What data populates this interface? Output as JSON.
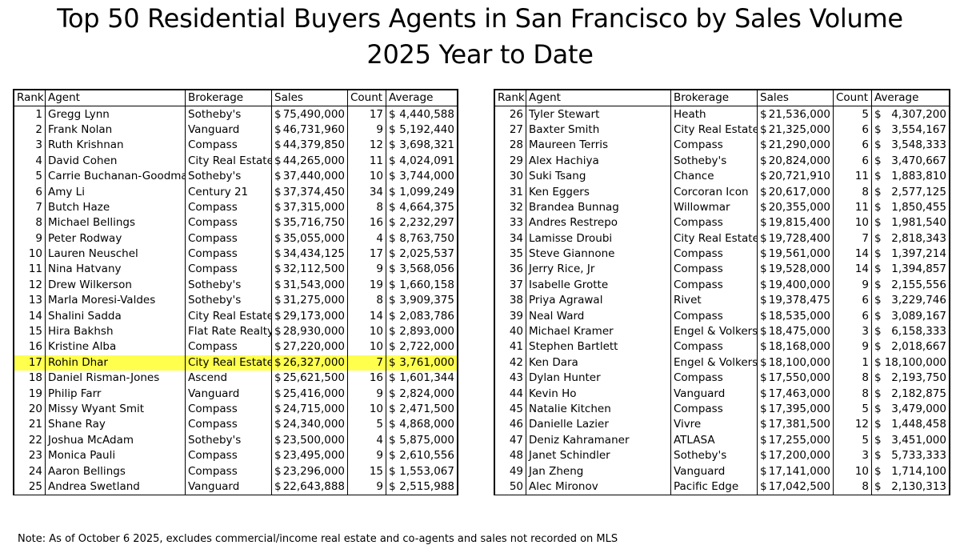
{
  "title": "Top 50 Residential Buyers Agents in San Francisco by Sales Volume",
  "subtitle": "2025 Year to Date",
  "columns": [
    "Rank",
    "Agent",
    "Brokerage",
    "Sales",
    "Count",
    "Average"
  ],
  "currency_symbol": "$",
  "highlight_color": "#ffff4d",
  "left_table": [
    {
      "rank": "1",
      "agent": "Gregg Lynn",
      "brokerage": "Sotheby's",
      "sales": "75,490,000",
      "count": "17",
      "average": "4,440,588"
    },
    {
      "rank": "2",
      "agent": "Frank Nolan",
      "brokerage": "Vanguard",
      "sales": "46,731,960",
      "count": "9",
      "average": "5,192,440"
    },
    {
      "rank": "3",
      "agent": "Ruth Krishnan",
      "brokerage": "Compass",
      "sales": "44,379,850",
      "count": "12",
      "average": "3,698,321"
    },
    {
      "rank": "4",
      "agent": "David Cohen",
      "brokerage": "City Real Estate",
      "sales": "44,265,000",
      "count": "11",
      "average": "4,024,091"
    },
    {
      "rank": "5",
      "agent": "Carrie Buchanan-Goodman",
      "brokerage": "Sotheby's",
      "sales": "37,440,000",
      "count": "10",
      "average": "3,744,000"
    },
    {
      "rank": "6",
      "agent": "Amy Li",
      "brokerage": "Century 21",
      "sales": "37,374,450",
      "count": "34",
      "average": "1,099,249"
    },
    {
      "rank": "7",
      "agent": "Butch Haze",
      "brokerage": "Compass",
      "sales": "37,315,000",
      "count": "8",
      "average": "4,664,375"
    },
    {
      "rank": "8",
      "agent": "Michael Bellings",
      "brokerage": "Compass",
      "sales": "35,716,750",
      "count": "16",
      "average": "2,232,297"
    },
    {
      "rank": "9",
      "agent": "Peter Rodway",
      "brokerage": "Compass",
      "sales": "35,055,000",
      "count": "4",
      "average": "8,763,750"
    },
    {
      "rank": "10",
      "agent": "Lauren Neuschel",
      "brokerage": "Compass",
      "sales": "34,434,125",
      "count": "17",
      "average": "2,025,537"
    },
    {
      "rank": "11",
      "agent": "Nina Hatvany",
      "brokerage": "Compass",
      "sales": "32,112,500",
      "count": "9",
      "average": "3,568,056"
    },
    {
      "rank": "12",
      "agent": "Drew Wilkerson",
      "brokerage": "Sotheby's",
      "sales": "31,543,000",
      "count": "19",
      "average": "1,660,158"
    },
    {
      "rank": "13",
      "agent": "Marla Moresi-Valdes",
      "brokerage": "Sotheby's",
      "sales": "31,275,000",
      "count": "8",
      "average": "3,909,375"
    },
    {
      "rank": "14",
      "agent": "Shalini Sadda",
      "brokerage": "City Real Estate",
      "sales": "29,173,000",
      "count": "14",
      "average": "2,083,786"
    },
    {
      "rank": "15",
      "agent": "Hira Bakhsh",
      "brokerage": "Flat Rate Realty",
      "sales": "28,930,000",
      "count": "10",
      "average": "2,893,000"
    },
    {
      "rank": "16",
      "agent": "Kristine Alba",
      "brokerage": "Compass",
      "sales": "27,220,000",
      "count": "10",
      "average": "2,722,000"
    },
    {
      "rank": "17",
      "agent": "Rohin Dhar",
      "brokerage": "City Real Estate",
      "sales": "26,327,000",
      "count": "7",
      "average": "3,761,000",
      "highlight": true
    },
    {
      "rank": "18",
      "agent": "Daniel Risman-Jones",
      "brokerage": "Ascend",
      "sales": "25,621,500",
      "count": "16",
      "average": "1,601,344"
    },
    {
      "rank": "19",
      "agent": "Philip Farr",
      "brokerage": "Vanguard",
      "sales": "25,416,000",
      "count": "9",
      "average": "2,824,000"
    },
    {
      "rank": "20",
      "agent": "Missy Wyant Smit",
      "brokerage": "Compass",
      "sales": "24,715,000",
      "count": "10",
      "average": "2,471,500"
    },
    {
      "rank": "21",
      "agent": "Shane Ray",
      "brokerage": "Compass",
      "sales": "24,340,000",
      "count": "5",
      "average": "4,868,000"
    },
    {
      "rank": "22",
      "agent": "Joshua McAdam",
      "brokerage": "Sotheby's",
      "sales": "23,500,000",
      "count": "4",
      "average": "5,875,000"
    },
    {
      "rank": "23",
      "agent": "Monica Pauli",
      "brokerage": "Compass",
      "sales": "23,495,000",
      "count": "9",
      "average": "2,610,556"
    },
    {
      "rank": "24",
      "agent": "Aaron Bellings",
      "brokerage": "Compass",
      "sales": "23,296,000",
      "count": "15",
      "average": "1,553,067"
    },
    {
      "rank": "25",
      "agent": "Andrea Swetland",
      "brokerage": "Vanguard",
      "sales": "22,643,888",
      "count": "9",
      "average": "2,515,988"
    }
  ],
  "right_table": [
    {
      "rank": "26",
      "agent": "Tyler Stewart",
      "brokerage": "Heath",
      "sales": "21,536,000",
      "count": "5",
      "average": "4,307,200"
    },
    {
      "rank": "27",
      "agent": "Baxter Smith",
      "brokerage": "City Real Estate",
      "sales": "21,325,000",
      "count": "6",
      "average": "3,554,167"
    },
    {
      "rank": "28",
      "agent": "Maureen Terris",
      "brokerage": "Compass",
      "sales": "21,290,000",
      "count": "6",
      "average": "3,548,333"
    },
    {
      "rank": "29",
      "agent": "Alex Hachiya",
      "brokerage": "Sotheby's",
      "sales": "20,824,000",
      "count": "6",
      "average": "3,470,667"
    },
    {
      "rank": "30",
      "agent": "Suki Tsang",
      "brokerage": "Chance",
      "sales": "20,721,910",
      "count": "11",
      "average": "1,883,810"
    },
    {
      "rank": "31",
      "agent": "Ken Eggers",
      "brokerage": "Corcoran Icon",
      "sales": "20,617,000",
      "count": "8",
      "average": "2,577,125"
    },
    {
      "rank": "32",
      "agent": "Brandea Bunnag",
      "brokerage": "Willowmar",
      "sales": "20,355,000",
      "count": "11",
      "average": "1,850,455"
    },
    {
      "rank": "33",
      "agent": "Andres Restrepo",
      "brokerage": "Compass",
      "sales": "19,815,400",
      "count": "10",
      "average": "1,981,540"
    },
    {
      "rank": "34",
      "agent": "Lamisse Droubi",
      "brokerage": "City Real Estate",
      "sales": "19,728,400",
      "count": "7",
      "average": "2,818,343"
    },
    {
      "rank": "35",
      "agent": "Steve Giannone",
      "brokerage": "Compass",
      "sales": "19,561,000",
      "count": "14",
      "average": "1,397,214"
    },
    {
      "rank": "36",
      "agent": "Jerry Rice, Jr",
      "brokerage": "Compass",
      "sales": "19,528,000",
      "count": "14",
      "average": "1,394,857"
    },
    {
      "rank": "37",
      "agent": "Isabelle Grotte",
      "brokerage": "Compass",
      "sales": "19,400,000",
      "count": "9",
      "average": "2,155,556"
    },
    {
      "rank": "38",
      "agent": "Priya Agrawal",
      "brokerage": "Rivet",
      "sales": "19,378,475",
      "count": "6",
      "average": "3,229,746"
    },
    {
      "rank": "39",
      "agent": "Neal Ward",
      "brokerage": "Compass",
      "sales": "18,535,000",
      "count": "6",
      "average": "3,089,167"
    },
    {
      "rank": "40",
      "agent": "Michael Kramer",
      "brokerage": "Engel & Volkers",
      "sales": "18,475,000",
      "count": "3",
      "average": "6,158,333"
    },
    {
      "rank": "41",
      "agent": "Stephen Bartlett",
      "brokerage": "Compass",
      "sales": "18,168,000",
      "count": "9",
      "average": "2,018,667"
    },
    {
      "rank": "42",
      "agent": "Ken Dara",
      "brokerage": "Engel & Volkers",
      "sales": "18,100,000",
      "count": "1",
      "average": "18,100,000"
    },
    {
      "rank": "43",
      "agent": "Dylan Hunter",
      "brokerage": "Compass",
      "sales": "17,550,000",
      "count": "8",
      "average": "2,193,750"
    },
    {
      "rank": "44",
      "agent": "Kevin Ho",
      "brokerage": "Vanguard",
      "sales": "17,463,000",
      "count": "8",
      "average": "2,182,875"
    },
    {
      "rank": "45",
      "agent": "Natalie Kitchen",
      "brokerage": "Compass",
      "sales": "17,395,000",
      "count": "5",
      "average": "3,479,000"
    },
    {
      "rank": "46",
      "agent": "Danielle Lazier",
      "brokerage": "Vivre",
      "sales": "17,381,500",
      "count": "12",
      "average": "1,448,458"
    },
    {
      "rank": "47",
      "agent": "Deniz Kahramaner",
      "brokerage": "ATLASA",
      "sales": "17,255,000",
      "count": "5",
      "average": "3,451,000"
    },
    {
      "rank": "48",
      "agent": "Janet Schindler",
      "brokerage": "Sotheby's",
      "sales": "17,200,000",
      "count": "3",
      "average": "5,733,333"
    },
    {
      "rank": "49",
      "agent": "Jan Zheng",
      "brokerage": "Vanguard",
      "sales": "17,141,000",
      "count": "10",
      "average": "1,714,100"
    },
    {
      "rank": "50",
      "agent": "Alec Mironov",
      "brokerage": "Pacific Edge",
      "sales": "17,042,500",
      "count": "8",
      "average": "2,130,313"
    }
  ],
  "note": "Note: As of October 6 2025, excludes commercial/income real estate and co-agents and sales not recorded on MLS"
}
